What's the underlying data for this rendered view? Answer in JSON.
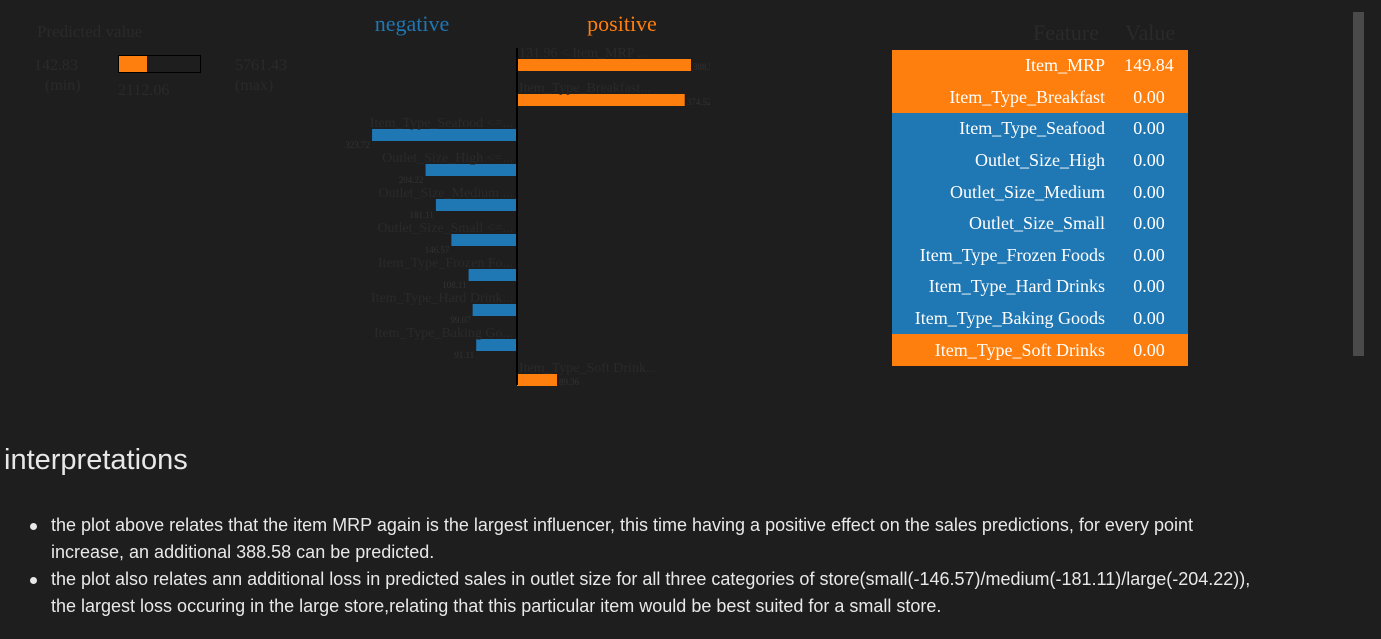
{
  "predicted": {
    "title": "Predicted value",
    "min": "142.83",
    "min_label": "(min)",
    "max": "5761.43",
    "max_label": "(max)",
    "value": "2112.06",
    "min_num": 142.83,
    "max_num": 5761.43,
    "value_num": 2112.06
  },
  "chart_data": {
    "type": "bar",
    "title": "",
    "negative_label": "negative",
    "positive_label": "positive",
    "categories": [
      "131.96 < Item_MRP ...",
      "Item_Type_Breakfast...",
      "Item_Type_Seafood <=...",
      "Outlet_Size_High <=...",
      "Outlet_Size_Medium ...",
      "Outlet_Size_Small <=...",
      "Item_Type_Frozen Fo...",
      "Item_Type_Hard Drink...",
      "Item_Type_Baking Go...",
      "Item_Type_Soft Drink..."
    ],
    "values": [
      388.58,
      374.52,
      -323.72,
      -204.22,
      -181.11,
      -146.57,
      -108.11,
      -99.07,
      -91.11,
      89.36
    ],
    "value_labels": [
      "388.58",
      "374.52",
      "323.72",
      "204.22",
      "181.11",
      "146.57",
      "108.11",
      "99.07",
      "91.11",
      "89.36"
    ],
    "colors": {
      "positive": "#ff7f0e",
      "negative": "#1f77b4"
    }
  },
  "feature_table": {
    "header_feature": "Feature",
    "header_value": "Value",
    "rows": [
      {
        "feature": "Item_MRP",
        "value": "149.84",
        "color": "#ff7f0e"
      },
      {
        "feature": "Item_Type_Breakfast",
        "value": "0.00",
        "color": "#ff7f0e"
      },
      {
        "feature": "Item_Type_Seafood",
        "value": "0.00",
        "color": "#1f77b4"
      },
      {
        "feature": "Outlet_Size_High",
        "value": "0.00",
        "color": "#1f77b4"
      },
      {
        "feature": "Outlet_Size_Medium",
        "value": "0.00",
        "color": "#1f77b4"
      },
      {
        "feature": "Outlet_Size_Small",
        "value": "0.00",
        "color": "#1f77b4"
      },
      {
        "feature": "Item_Type_Frozen Foods",
        "value": "0.00",
        "color": "#1f77b4"
      },
      {
        "feature": "Item_Type_Hard Drinks",
        "value": "0.00",
        "color": "#1f77b4"
      },
      {
        "feature": "Item_Type_Baking Goods",
        "value": "0.00",
        "color": "#1f77b4"
      },
      {
        "feature": "Item_Type_Soft Drinks",
        "value": "0.00",
        "color": "#ff7f0e"
      }
    ]
  },
  "interpretations": {
    "heading": "interpretations",
    "items": [
      {
        "line1": "the plot above relates that the item MRP again is the largest influencer, this time having a positive effect on the sales predictions, for every point",
        "line2": "increase, an additional 388.58 can be predicted."
      },
      {
        "line1": "the plot also relates ann additional loss in predicted sales in outlet size for all three categories of store(small(-146.57)/medium(-181.11)/large(-204.22)),",
        "line2": "the largest loss occuring in the large store,relating that this particular item would be best suited for a small store."
      }
    ]
  }
}
